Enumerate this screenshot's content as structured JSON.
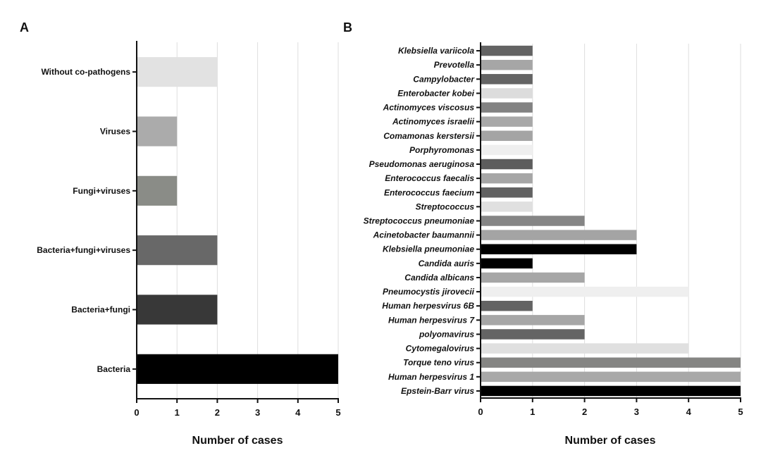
{
  "chart_data": [
    {
      "panel": "A",
      "type": "bar",
      "orientation": "horizontal",
      "categories": [
        "Without co-pathogens",
        "Viruses",
        "Fungi+viruses",
        "Bacteria+fungi+viruses",
        "Bacteria+fungi",
        "Bacteria"
      ],
      "values": [
        2,
        1,
        1,
        2,
        2,
        5
      ],
      "colors": [
        "#e2e2e2",
        "#ababab",
        "#8a8c87",
        "#686868",
        "#383838",
        "#000000"
      ],
      "xlabel": "Number of cases",
      "xticks": [
        "0",
        "1",
        "2",
        "3",
        "4",
        "5"
      ],
      "xlim": [
        0,
        5
      ],
      "grid": "vertical"
    },
    {
      "panel": "B",
      "type": "bar",
      "orientation": "horizontal",
      "categories": [
        "Klebsiella variicola",
        "Prevotella",
        "Campylobacter",
        "Enterobacter kobei",
        "Actinomyces viscosus",
        "Actinomyces israelii",
        "Comamonas kerstersii",
        "Porphyromonas",
        "Pseudomonas aeruginosa",
        "Enterococcus faecalis",
        "Enterococcus faecium",
        "Streptococcus",
        "Streptococcus pneumoniae",
        "Acinetobacter baumannii",
        "Klebsiella pneumoniae",
        "Candida auris",
        "Candida albicans",
        "Pneumocystis jirovecii",
        "Human herpesvirus 6B",
        "Human herpesvirus 7",
        "polyomavirus",
        "Cytomegalovirus",
        "Torque teno virus",
        "Human herpesvirus 1",
        "Epstein-Barr virus"
      ],
      "values": [
        1,
        1,
        1,
        1,
        1,
        1,
        1,
        1,
        1,
        1,
        1,
        1,
        2,
        3,
        3,
        1,
        2,
        4,
        1,
        2,
        2,
        4,
        5,
        5,
        5
      ],
      "colors": [
        "#636363",
        "#a6a6a6",
        "#646464",
        "#dcdcdc",
        "#828282",
        "#a8a8a8",
        "#a4a4a4",
        "#efefef",
        "#5d5d5d",
        "#a6a6a6",
        "#626262",
        "#e0e0e0",
        "#858585",
        "#a4a4a4",
        "#000000",
        "#000000",
        "#a6a6a6",
        "#efefef",
        "#636363",
        "#a6a6a6",
        "#646464",
        "#e0e0e0",
        "#858583",
        "#a8a8a8",
        "#000000"
      ],
      "xlabel": "Number of cases",
      "xticks": [
        "0",
        "1",
        "2",
        "3",
        "4",
        "5"
      ],
      "xlim": [
        0,
        5
      ],
      "grid": "vertical"
    }
  ],
  "panels": {
    "a_letter": "A",
    "b_letter": "B"
  }
}
